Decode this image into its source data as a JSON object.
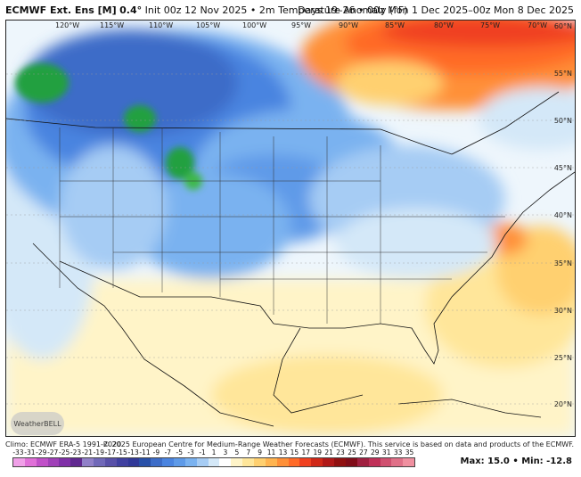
{
  "header": {
    "model": "ECMWF Ext. Ens [M]",
    "resolution": "0.4°",
    "init": "Init 00z 12 Nov 2025",
    "field": "2m Temperature Anomaly (°F)",
    "valid": "Days 19–26 • 00z Mon 1 Dec 2025–00z Mon 8 Dec 2025"
  },
  "map": {
    "longitudes": [
      "120°W",
      "115°W",
      "110°W",
      "105°W",
      "100°W",
      "95°W",
      "90°W",
      "85°W",
      "80°W",
      "75°W",
      "70°W"
    ],
    "latitudes": [
      "60°N",
      "55°N",
      "50°N",
      "45°N",
      "40°N",
      "35°N",
      "30°N",
      "25°N",
      "20°N"
    ],
    "logo_text": "WeatherBELL"
  },
  "footer": {
    "climo": "Climo: ECMWF ERA-5 1991-2020",
    "copyright": "© 2025 European Centre for Medium-Range Weather Forecasts (ECMWF). This service is based on data and products of the ECMWF.",
    "max_label": "Max: 15.0 • Min: -12.8"
  },
  "colorbar": {
    "ticks": [
      "-33",
      "-31",
      "-29",
      "-27",
      "-25",
      "-23",
      "-21",
      "-19",
      "-17",
      "-15",
      "-13",
      "-11",
      "-9",
      "-7",
      "-5",
      "-3",
      "-1",
      "1",
      "3",
      "5",
      "7",
      "9",
      "11",
      "13",
      "15",
      "17",
      "19",
      "21",
      "23",
      "25",
      "27",
      "29",
      "31",
      "33",
      "35"
    ],
    "colors": [
      "#f0a0e8",
      "#e070d8",
      "#c050c8",
      "#a040b8",
      "#8030a8",
      "#602890",
      "#9080c8",
      "#7068b8",
      "#5850a8",
      "#4040a0",
      "#303898",
      "#2850a8",
      "#3c6cc8",
      "#4a84e0",
      "#5e9ae8",
      "#7ab2f0",
      "#a6ccf4",
      "#d4e8f8",
      "#ffffff",
      "#fff4c8",
      "#ffe69a",
      "#ffd070",
      "#ffb450",
      "#ff9038",
      "#ff6a28",
      "#f04020",
      "#d02818",
      "#b01818",
      "#901010",
      "#800c18",
      "#a02040",
      "#c03058",
      "#d05070",
      "#e07088",
      "#f090a0"
    ]
  }
}
